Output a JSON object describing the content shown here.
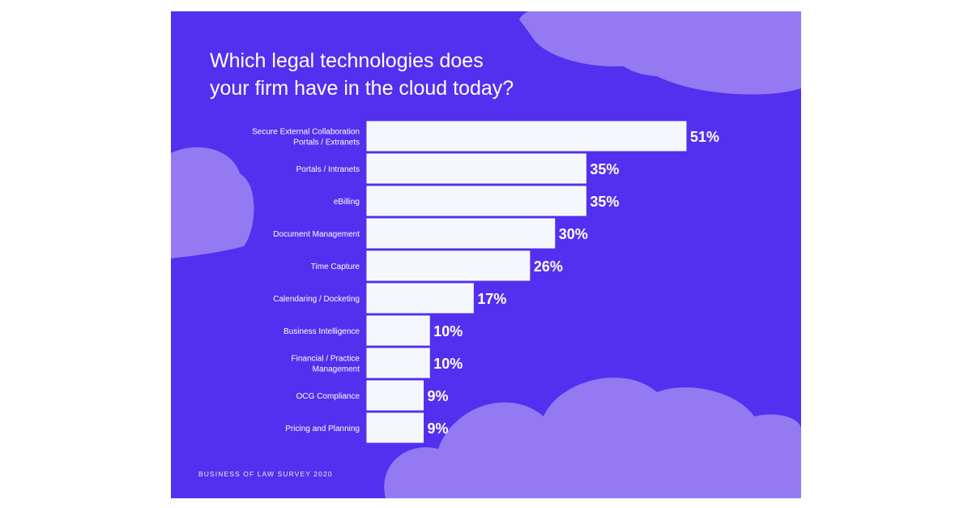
{
  "colors": {
    "background": "#5330f0",
    "bar": "#f4f7fb",
    "bar_edge": "#ffffff",
    "label_text": "#ffffff",
    "cloud": "#c8b8f5",
    "footer_text": "#f2ecd7"
  },
  "title_lines": [
    "Which legal technologies does",
    "your firm have in the cloud today?"
  ],
  "footer": "BUSINESS OF LAW SURVEY 2020",
  "chart_data": {
    "type": "bar",
    "orientation": "horizontal",
    "title": "Which legal technologies does your firm have in the cloud today?",
    "categories": [
      [
        "Secure External Collaboration",
        "Portals / Extranets"
      ],
      [
        "Portals / Intranets"
      ],
      [
        "eBilling"
      ],
      [
        "Document Management"
      ],
      [
        "Time Capture"
      ],
      [
        "Calendaring / Docketing"
      ],
      [
        "Business Intelligence"
      ],
      [
        "Financial / Practice",
        "Management"
      ],
      [
        "OCG Compliance"
      ],
      [
        "Pricing and Planning"
      ]
    ],
    "values": [
      51,
      35,
      35,
      30,
      26,
      17,
      10,
      10,
      9,
      9
    ],
    "value_labels": [
      "51%",
      "35%",
      "35%",
      "30%",
      "26%",
      "17%",
      "10%",
      "10%",
      "9%",
      "9%"
    ],
    "unit": "%",
    "grid": false,
    "legend": "none"
  }
}
